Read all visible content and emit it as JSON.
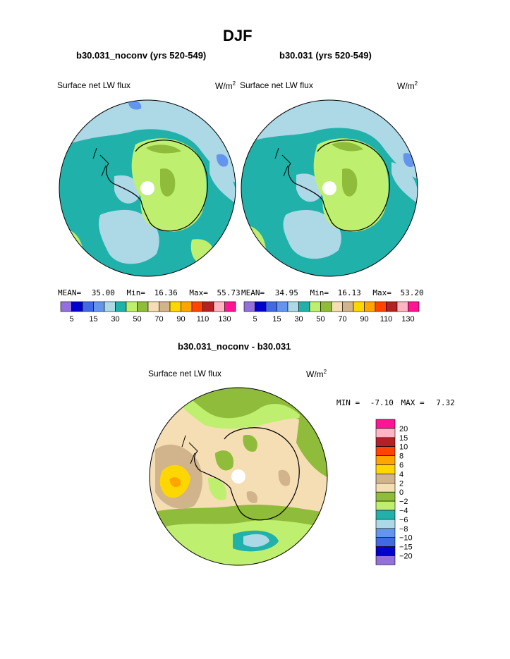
{
  "page": {
    "title": "DJF",
    "diff_title": "b30.031_noconv - b30.031"
  },
  "colors": {
    "ocean_teal": "#20B2AA",
    "light_blue": "#ADD8E6",
    "mid_blue": "#6495ED",
    "lime": "#BFEF6F",
    "olive": "#8FBC3A",
    "wheat": "#F5DEB3",
    "tan": "#D2B48C",
    "gold": "#FFD700",
    "orange": "#FFA500",
    "pole_white": "#FFFFFF"
  },
  "chart_data": [
    {
      "type": "heatmap",
      "projection": "south-polar-stereographic",
      "title": "b30.031_noconv (yrs 520-549)",
      "variable_label": "Surface net LW flux",
      "units_label": "W/m",
      "units_sup": "2",
      "stats": {
        "mean_label": "MEAN=",
        "mean": "35.00",
        "min_label": "Min=",
        "min": "16.36",
        "max_label": "Max=",
        "max": "55.73"
      },
      "colorbar": {
        "orientation": "horizontal",
        "levels": [
          5,
          10,
          15,
          20,
          30,
          40,
          50,
          60,
          70,
          80,
          90,
          100,
          110,
          120,
          130
        ],
        "tick_labels": [
          "5",
          "15",
          "30",
          "50",
          "70",
          "90",
          "110",
          "130"
        ],
        "colors": [
          "#9370DB",
          "#0000CD",
          "#4169E1",
          "#6495ED",
          "#ADD8E6",
          "#20B2AA",
          "#BFEF6F",
          "#8FBC3A",
          "#F5DEB3",
          "#D2B48C",
          "#FFD700",
          "#FFA500",
          "#FF4500",
          "#B22222",
          "#FFB6C1",
          "#FF1493"
        ]
      }
    },
    {
      "type": "heatmap",
      "projection": "south-polar-stereographic",
      "title": "b30.031 (yrs 520-549)",
      "variable_label": "Surface net LW flux",
      "units_label": "W/m",
      "units_sup": "2",
      "stats": {
        "mean_label": "MEAN=",
        "mean": "34.95",
        "min_label": "Min=",
        "min": "16.13",
        "max_label": "Max=",
        "max": "53.20"
      },
      "colorbar": {
        "orientation": "horizontal",
        "levels": [
          5,
          10,
          15,
          20,
          30,
          40,
          50,
          60,
          70,
          80,
          90,
          100,
          110,
          120,
          130
        ],
        "tick_labels": [
          "5",
          "15",
          "30",
          "50",
          "70",
          "90",
          "110",
          "130"
        ],
        "colors": [
          "#9370DB",
          "#0000CD",
          "#4169E1",
          "#6495ED",
          "#ADD8E6",
          "#20B2AA",
          "#BFEF6F",
          "#8FBC3A",
          "#F5DEB3",
          "#D2B48C",
          "#FFD700",
          "#FFA500",
          "#FF4500",
          "#B22222",
          "#FFB6C1",
          "#FF1493"
        ]
      }
    },
    {
      "type": "heatmap",
      "projection": "south-polar-stereographic",
      "title": "b30.031_noconv - b30.031",
      "variable_label": "Surface net LW flux",
      "units_label": "W/m",
      "units_sup": "2",
      "stats": {
        "min_label": "MIN =",
        "min": "-7.10",
        "max_label": "MAX =",
        "max": "7.32"
      },
      "colorbar": {
        "orientation": "vertical",
        "tick_labels_top_to_bottom": [
          "20",
          "15",
          "10",
          "8",
          "6",
          "4",
          "2",
          "0",
          "−2",
          "−4",
          "−6",
          "−8",
          "−10",
          "−15",
          "−20"
        ],
        "colors_top_to_bottom": [
          "#FF1493",
          "#FFB6C1",
          "#B22222",
          "#FF4500",
          "#FFA500",
          "#FFD700",
          "#D2B48C",
          "#F5DEB3",
          "#8FBC3A",
          "#BFEF6F",
          "#20B2AA",
          "#ADD8E6",
          "#6495ED",
          "#4169E1",
          "#0000CD",
          "#9370DB"
        ]
      }
    }
  ]
}
